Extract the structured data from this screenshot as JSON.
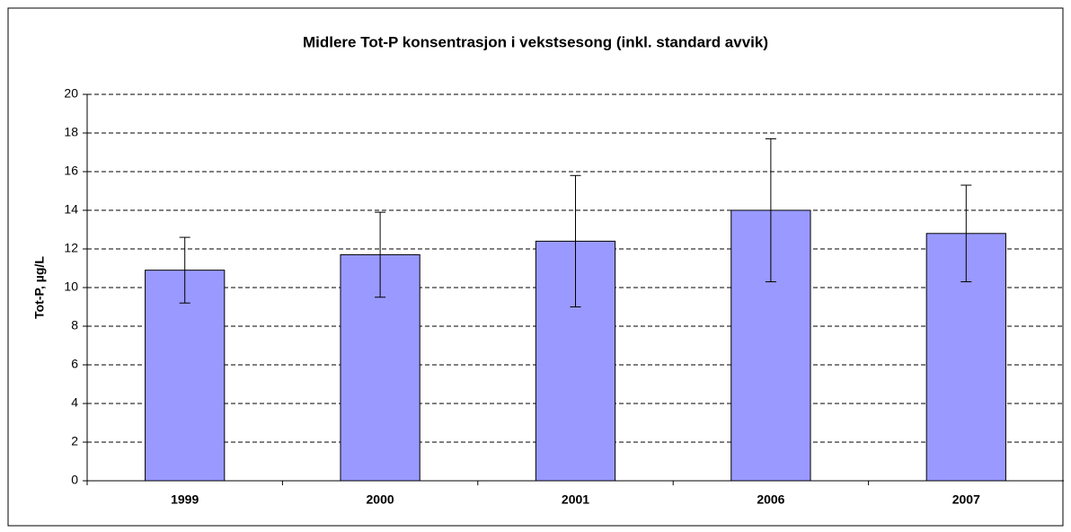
{
  "chart_data": {
    "type": "bar",
    "title": "Midlere Tot-P konsentrasjon i vekstsesong (inkl. standard avvik)",
    "y_label": "Tot-P, µg/L",
    "categories": [
      "1999",
      "2000",
      "2001",
      "2006",
      "2007"
    ],
    "values": [
      10.9,
      11.7,
      12.4,
      14.0,
      12.8
    ],
    "errors": [
      1.7,
      2.2,
      3.4,
      3.7,
      2.5
    ],
    "color": "#9999ff",
    "ylim": [
      0,
      20
    ],
    "yticks": [
      0,
      2,
      4,
      6,
      8,
      10,
      12,
      14,
      16,
      18,
      20
    ],
    "grid": true
  }
}
